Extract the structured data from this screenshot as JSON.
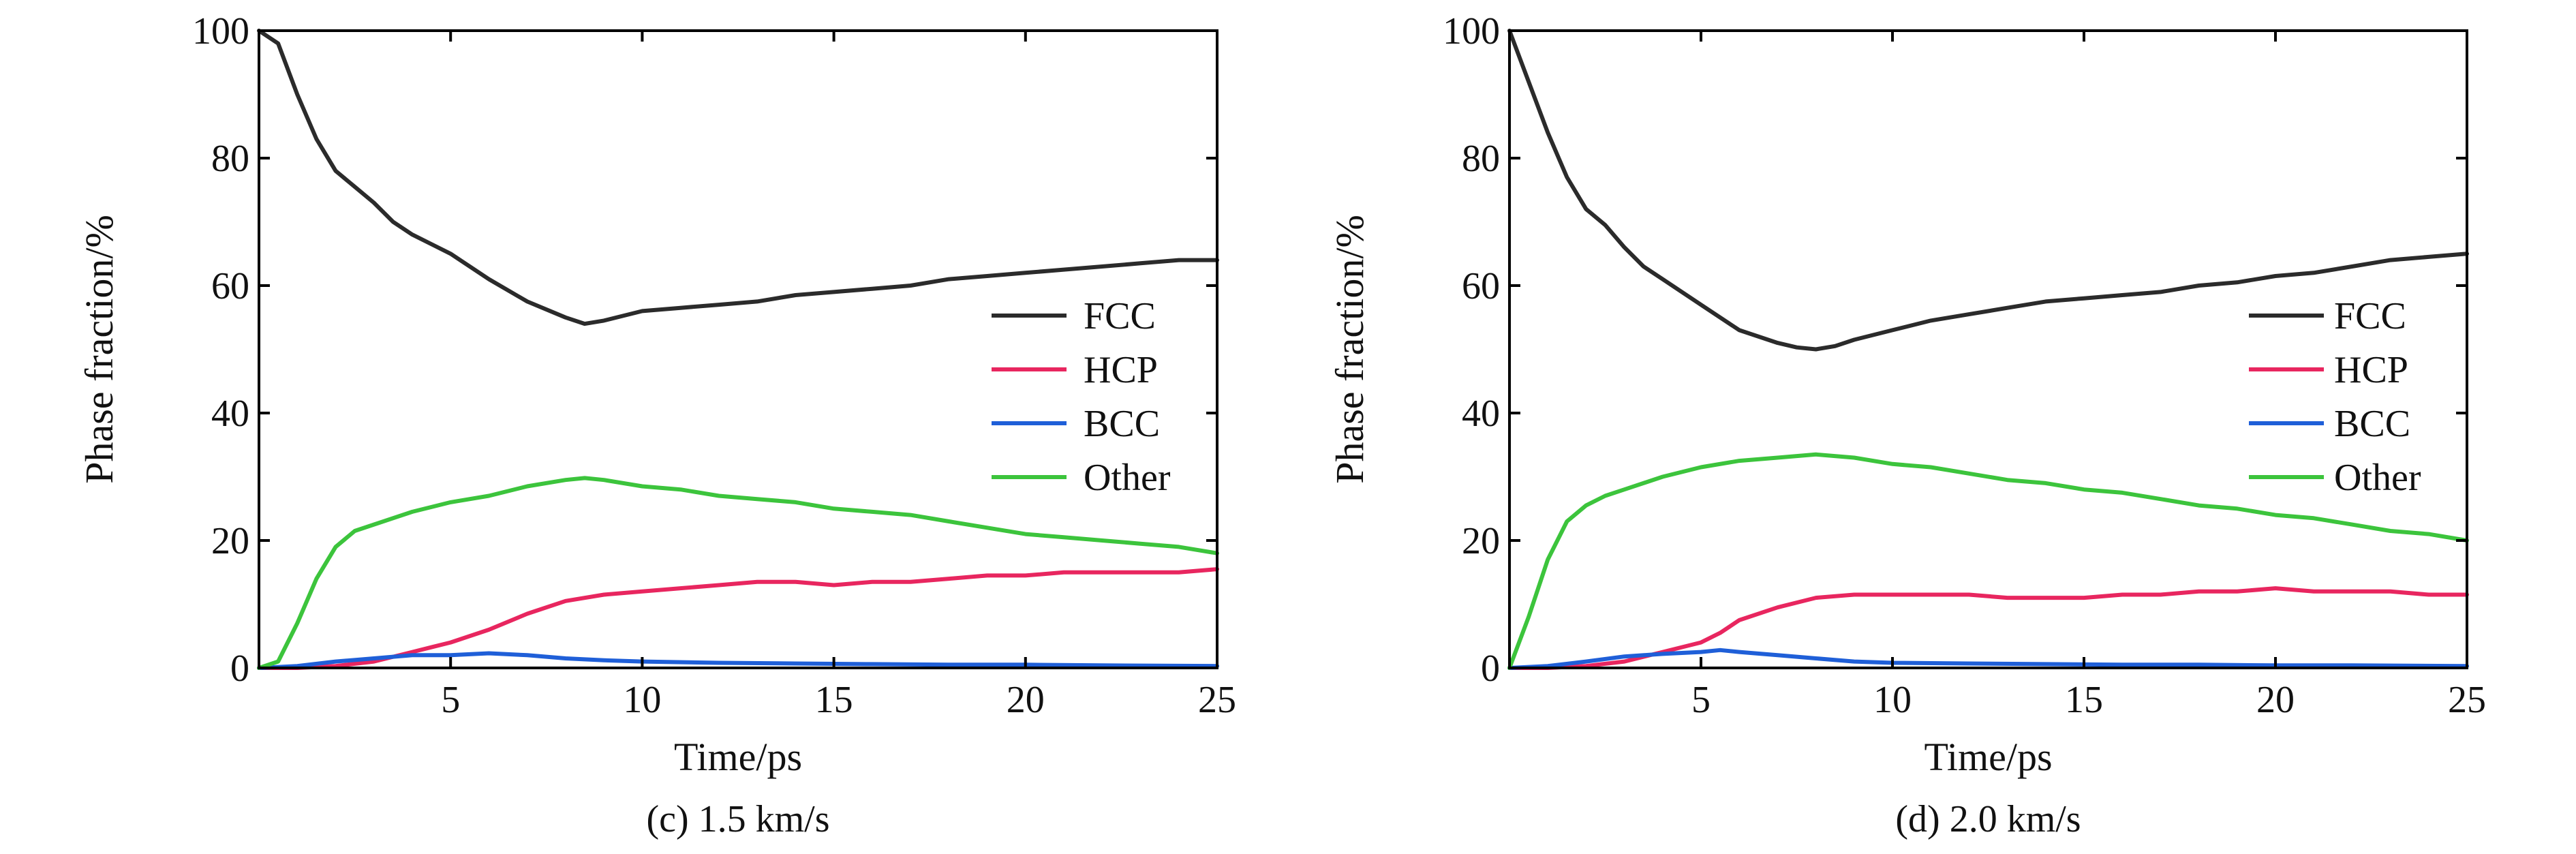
{
  "chart_data": [
    {
      "type": "line",
      "caption": "(c) 1.5 km/s",
      "xlabel": "Time/ps",
      "ylabel": "Phase fraction/%",
      "xlim": [
        0,
        25
      ],
      "ylim": [
        0,
        100
      ],
      "xticks": [
        5,
        10,
        15,
        20,
        25
      ],
      "yticks": [
        0,
        20,
        40,
        60,
        80,
        100
      ],
      "legend_position": "center-right",
      "series": [
        {
          "name": "FCC",
          "color": "#2b2b2b",
          "x": [
            0,
            0.5,
            1,
            1.5,
            2,
            2.5,
            3,
            3.5,
            4,
            5,
            6,
            7,
            8,
            8.5,
            9,
            10,
            11,
            12,
            13,
            14,
            15,
            16,
            17,
            18,
            19,
            20,
            21,
            22,
            23,
            24,
            25
          ],
          "y": [
            100,
            98,
            90,
            83,
            78,
            75.5,
            73,
            70,
            68,
            65,
            61,
            57.5,
            55,
            54,
            54.5,
            56,
            56.5,
            57,
            57.5,
            58.5,
            59,
            59.5,
            60,
            61,
            61.5,
            62,
            62.5,
            63,
            63.5,
            64,
            64
          ]
        },
        {
          "name": "HCP",
          "color": "#e8265f",
          "x": [
            0,
            1,
            2,
            3,
            4,
            5,
            6,
            7,
            8,
            9,
            10,
            11,
            12,
            13,
            14,
            15,
            16,
            17,
            18,
            19,
            20,
            21,
            22,
            23,
            24,
            25
          ],
          "y": [
            0,
            0,
            0.3,
            1,
            2.5,
            4,
            6,
            8.5,
            10.5,
            11.5,
            12,
            12.5,
            13,
            13.5,
            13.5,
            13,
            13.5,
            13.5,
            14,
            14.5,
            14.5,
            15,
            15,
            15,
            15,
            15.5
          ]
        },
        {
          "name": "BCC",
          "color": "#1f5fd8",
          "x": [
            0,
            1,
            2,
            3,
            4,
            5,
            6,
            7,
            8,
            9,
            10,
            12,
            14,
            16,
            18,
            20,
            22,
            25
          ],
          "y": [
            0,
            0.3,
            1,
            1.5,
            2,
            2,
            2.3,
            2,
            1.5,
            1.2,
            1,
            0.8,
            0.7,
            0.6,
            0.5,
            0.5,
            0.4,
            0.3
          ]
        },
        {
          "name": "Other",
          "color": "#3cc43c",
          "x": [
            0,
            0.5,
            1,
            1.5,
            2,
            2.5,
            3,
            4,
            5,
            6,
            7,
            8,
            8.5,
            9,
            10,
            11,
            12,
            13,
            14,
            15,
            16,
            17,
            18,
            19,
            20,
            21,
            22,
            23,
            24,
            25
          ],
          "y": [
            0,
            1,
            7,
            14,
            19,
            21.5,
            22.5,
            24.5,
            26,
            27,
            28.5,
            29.5,
            29.8,
            29.5,
            28.5,
            28,
            27,
            26.5,
            26,
            25,
            24.5,
            24,
            23,
            22,
            21,
            20.5,
            20,
            19.5,
            19,
            18
          ]
        }
      ]
    },
    {
      "type": "line",
      "caption": "(d) 2.0 km/s",
      "xlabel": "Time/ps",
      "ylabel": "Phase fraction/%",
      "xlim": [
        0,
        25
      ],
      "ylim": [
        0,
        100
      ],
      "xticks": [
        5,
        10,
        15,
        20,
        25
      ],
      "yticks": [
        0,
        20,
        40,
        60,
        80,
        100
      ],
      "legend_position": "center-right",
      "series": [
        {
          "name": "FCC",
          "color": "#2b2b2b",
          "x": [
            0,
            0.5,
            1,
            1.5,
            2,
            2.5,
            3,
            3.5,
            4,
            5,
            6,
            7,
            7.5,
            8,
            8.5,
            9,
            10,
            11,
            12,
            13,
            14,
            15,
            16,
            17,
            18,
            19,
            20,
            21,
            22,
            23,
            24,
            25
          ],
          "y": [
            100,
            92,
            84,
            77,
            72,
            69.5,
            66,
            63,
            61,
            57,
            53,
            51,
            50.3,
            50,
            50.5,
            51.5,
            53,
            54.5,
            55.5,
            56.5,
            57.5,
            58,
            58.5,
            59,
            60,
            60.5,
            61.5,
            62,
            63,
            64,
            64.5,
            65
          ]
        },
        {
          "name": "HCP",
          "color": "#e8265f",
          "x": [
            0,
            1,
            2,
            3,
            4,
            5,
            5.5,
            6,
            7,
            8,
            9,
            10,
            11,
            12,
            13,
            14,
            15,
            16,
            17,
            18,
            19,
            20,
            21,
            22,
            23,
            24,
            25
          ],
          "y": [
            0,
            0,
            0.3,
            1,
            2.5,
            4,
            5.5,
            7.5,
            9.5,
            11,
            11.5,
            11.5,
            11.5,
            11.5,
            11,
            11,
            11,
            11.5,
            11.5,
            12,
            12,
            12.5,
            12,
            12,
            12,
            11.5,
            11.5
          ]
        },
        {
          "name": "BCC",
          "color": "#1f5fd8",
          "x": [
            0,
            1,
            2,
            3,
            4,
            5,
            5.5,
            6,
            7,
            8,
            9,
            10,
            12,
            14,
            16,
            18,
            20,
            22,
            25
          ],
          "y": [
            0,
            0.3,
            1,
            1.8,
            2.2,
            2.5,
            2.8,
            2.5,
            2,
            1.5,
            1,
            0.8,
            0.7,
            0.6,
            0.5,
            0.5,
            0.4,
            0.4,
            0.3
          ]
        },
        {
          "name": "Other",
          "color": "#3cc43c",
          "x": [
            0,
            0.5,
            1,
            1.5,
            2,
            2.5,
            3,
            4,
            5,
            6,
            7,
            8,
            9,
            10,
            11,
            12,
            13,
            14,
            15,
            16,
            17,
            18,
            19,
            20,
            21,
            22,
            23,
            24,
            25
          ],
          "y": [
            0,
            8,
            17,
            23,
            25.5,
            27,
            28,
            30,
            31.5,
            32.5,
            33,
            33.5,
            33,
            32,
            31.5,
            30.5,
            29.5,
            29,
            28,
            27.5,
            26.5,
            25.5,
            25,
            24,
            23.5,
            22.5,
            21.5,
            21,
            20
          ]
        }
      ]
    }
  ]
}
